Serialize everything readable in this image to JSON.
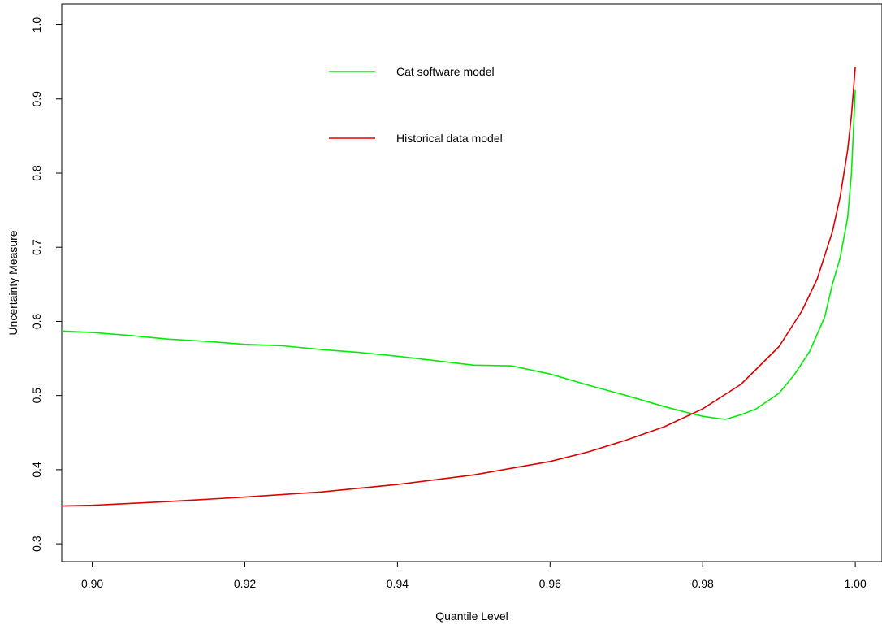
{
  "chart_data": {
    "type": "line",
    "title": "",
    "xlabel": "Quantile Level",
    "ylabel": "Uncertainty Measure",
    "xlim": [
      0.896,
      1.0035
    ],
    "ylim": [
      0.276,
      1.028
    ],
    "xticks": [
      "0.90",
      "0.92",
      "0.94",
      "0.96",
      "0.98",
      "1.00"
    ],
    "yticks": [
      "0.3",
      "0.4",
      "0.5",
      "0.6",
      "0.7",
      "0.8",
      "0.9",
      "1.0"
    ],
    "grid": false,
    "legend_position": "top-center",
    "series": [
      {
        "name": "Cat software model",
        "color": "#00ee00",
        "x": [
          0.896,
          0.9,
          0.905,
          0.91,
          0.915,
          0.92,
          0.925,
          0.93,
          0.935,
          0.94,
          0.945,
          0.95,
          0.955,
          0.96,
          0.965,
          0.97,
          0.975,
          0.978,
          0.98,
          0.982,
          0.983,
          0.985,
          0.987,
          0.99,
          0.992,
          0.994,
          0.996,
          0.997,
          0.998,
          0.999,
          0.9995,
          1.0
        ],
        "y": [
          0.587,
          0.585,
          0.581,
          0.576,
          0.573,
          0.569,
          0.567,
          0.562,
          0.558,
          0.553,
          0.547,
          0.541,
          0.54,
          0.529,
          0.514,
          0.5,
          0.485,
          0.477,
          0.472,
          0.469,
          0.468,
          0.474,
          0.482,
          0.503,
          0.528,
          0.559,
          0.606,
          0.65,
          0.685,
          0.74,
          0.8,
          0.912
        ]
      },
      {
        "name": "Historical data model",
        "color": "#dd0000",
        "x": [
          0.896,
          0.9,
          0.91,
          0.92,
          0.93,
          0.94,
          0.95,
          0.96,
          0.965,
          0.97,
          0.975,
          0.98,
          0.985,
          0.99,
          0.993,
          0.995,
          0.997,
          0.998,
          0.999,
          0.9995,
          1.0
        ],
        "y": [
          0.351,
          0.352,
          0.357,
          0.363,
          0.37,
          0.38,
          0.393,
          0.411,
          0.424,
          0.44,
          0.458,
          0.482,
          0.515,
          0.566,
          0.614,
          0.657,
          0.721,
          0.767,
          0.831,
          0.878,
          0.943
        ]
      }
    ]
  }
}
